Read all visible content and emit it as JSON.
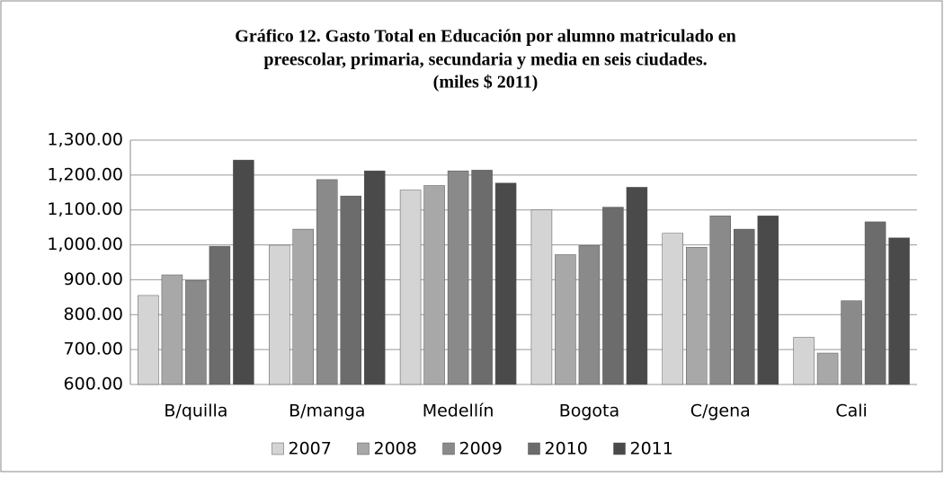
{
  "chart_data": {
    "type": "bar",
    "title": [
      "Gráfico 12. Gasto Total en Educación por alumno matriculado en",
      "preescolar,  primaria, secundaria y media en seis ciudades.",
      "(miles $ 2011)"
    ],
    "categories": [
      "B/quilla",
      "B/manga",
      "Medellín",
      "Bogota",
      "C/gena",
      "Cali"
    ],
    "series": [
      {
        "name": "2007",
        "color": "#d4d4d4",
        "values": [
          855,
          999,
          1157,
          1100,
          1033,
          735
        ]
      },
      {
        "name": "2008",
        "color": "#a8a8a8",
        "values": [
          914,
          1045,
          1170,
          972,
          993,
          690
        ]
      },
      {
        "name": "2009",
        "color": "#8a8a8a",
        "values": [
          898,
          1187,
          1212,
          998,
          1083,
          840
        ]
      },
      {
        "name": "2010",
        "color": "#6c6c6c",
        "values": [
          996,
          1140,
          1214,
          1108,
          1045,
          1066
        ]
      },
      {
        "name": "2011",
        "color": "#4a4a4a",
        "values": [
          1243,
          1212,
          1177,
          1165,
          1083,
          1020
        ]
      }
    ],
    "ylim": [
      600,
      1300
    ],
    "yticks": [
      {
        "value": 600,
        "label": "600.00"
      },
      {
        "value": 700,
        "label": "700.00"
      },
      {
        "value": 800,
        "label": "800.00"
      },
      {
        "value": 900,
        "label": "900.00"
      },
      {
        "value": 1000,
        "label": "1,000.00"
      },
      {
        "value": 1100,
        "label": "1,100.00"
      },
      {
        "value": 1200,
        "label": "1,200.00"
      },
      {
        "value": 1300,
        "label": "1,300.00"
      }
    ],
    "grid": true,
    "legend": "bottom"
  }
}
